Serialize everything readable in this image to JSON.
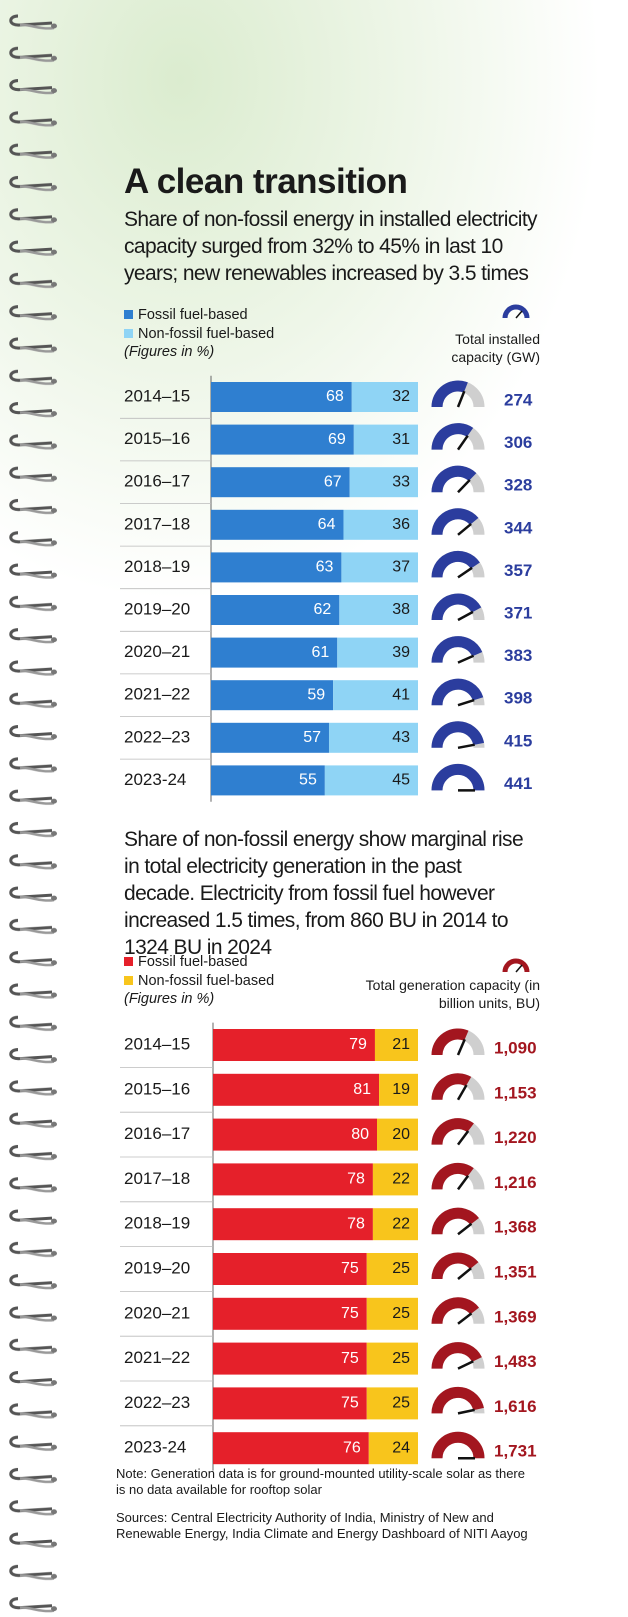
{
  "title": "A clean transition",
  "chart_data": [
    {
      "type": "bar",
      "orientation": "horizontal",
      "stacked": true,
      "subtitle": "Share of non-fossil energy in installed electricity capacity surged from 32% to 45% in last 10 years; new renewables increased by 3.5 times",
      "unit_note": "(Figures in %)",
      "categories": [
        "2014–15",
        "2015–16",
        "2016–17",
        "2017–18",
        "2018–19",
        "2019–20",
        "2020–21",
        "2021–22",
        "2022–23",
        "2023-24"
      ],
      "series": [
        {
          "name": "Fossil fuel-based",
          "color": "#2f7fd0",
          "label_color": "#ffffff",
          "values": [
            68,
            69,
            67,
            64,
            63,
            62,
            61,
            59,
            57,
            55
          ]
        },
        {
          "name": "Non-fossil fuel-based",
          "color": "#8fd4f5",
          "label_color": "#1a1a1a",
          "values": [
            32,
            31,
            33,
            36,
            37,
            38,
            39,
            41,
            43,
            45
          ]
        }
      ],
      "xlim": [
        0,
        100
      ],
      "gauge": {
        "name": "Total installed capacity (GW)",
        "color": "#2b3d9e",
        "values": [
          274,
          306,
          328,
          344,
          357,
          371,
          383,
          398,
          415,
          441
        ]
      }
    },
    {
      "type": "bar",
      "orientation": "horizontal",
      "stacked": true,
      "subtitle": "Share of non-fossil energy show marginal rise in total electricity generation in the past decade. Electricity from fossil fuel however increased 1.5 times, from 860 BU in 2014 to 1324 BU in 2024",
      "unit_note": "(Figures in %)",
      "categories": [
        "2014–15",
        "2015–16",
        "2016–17",
        "2017–18",
        "2018–19",
        "2019–20",
        "2020–21",
        "2021–22",
        "2022–23",
        "2023-24"
      ],
      "series": [
        {
          "name": "Fossil fuel-based",
          "color": "#e5202a",
          "label_color": "#ffffff",
          "values": [
            79,
            81,
            80,
            78,
            78,
            75,
            75,
            75,
            75,
            76
          ]
        },
        {
          "name": "Non-fossil fuel-based",
          "color": "#f8c51c",
          "label_color": "#1a1a1a",
          "values": [
            21,
            19,
            20,
            22,
            22,
            25,
            25,
            25,
            25,
            24
          ]
        }
      ],
      "xlim": [
        0,
        100
      ],
      "gauge": {
        "name": "Total generation capacity (in billion units, BU)",
        "color": "#a3161f",
        "values": [
          1090,
          1153,
          1220,
          1216,
          1368,
          1351,
          1369,
          1483,
          1616,
          1731
        ],
        "value_labels": [
          "1,090",
          "1,153",
          "1,220",
          "1,216",
          "1,368",
          "1,351",
          "1,369",
          "1,483",
          "1,616",
          "1,731"
        ]
      }
    }
  ],
  "notes": [
    "Note: Generation data is for ground-mounted utility-scale solar as there is no data available for rooftop solar",
    "Sources: Central Electricity Authority of India, Ministry of New and Renewable Energy, India Climate and Energy Dashboard of NITI Aayog"
  ]
}
